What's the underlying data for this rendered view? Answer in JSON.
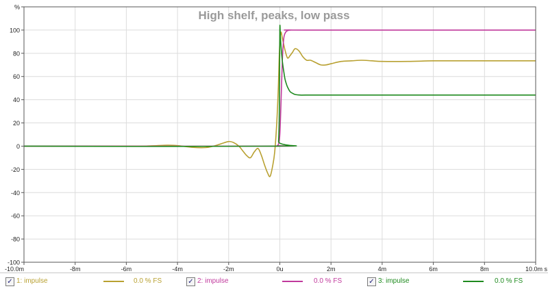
{
  "chart_data": {
    "type": "line",
    "title": "High shelf, peaks, low pass",
    "xlabel": "",
    "ylabel": "",
    "xlim": [
      -10.0,
      10.0
    ],
    "ylim": [
      -100,
      120
    ],
    "x_unit": "ms",
    "grid": true,
    "x_ticks": [
      {
        "v": -10,
        "label": "-10.0m"
      },
      {
        "v": -8,
        "label": "-8m"
      },
      {
        "v": -6,
        "label": "-6m"
      },
      {
        "v": -4,
        "label": "-4m"
      },
      {
        "v": -2,
        "label": "-2m"
      },
      {
        "v": 0,
        "label": "0u"
      },
      {
        "v": 2,
        "label": "2m"
      },
      {
        "v": 4,
        "label": "4m"
      },
      {
        "v": 6,
        "label": "6m"
      },
      {
        "v": 8,
        "label": "8m"
      },
      {
        "v": 10,
        "label": "10.0m s"
      }
    ],
    "y_ticks": [
      {
        "v": 120,
        "label": "%"
      },
      {
        "v": 100,
        "label": "100"
      },
      {
        "v": 80,
        "label": "80"
      },
      {
        "v": 60,
        "label": "60"
      },
      {
        "v": 40,
        "label": "40"
      },
      {
        "v": 20,
        "label": "20"
      },
      {
        "v": 0,
        "label": "0"
      },
      {
        "v": -20,
        "label": "-20"
      },
      {
        "v": -40,
        "label": "-40"
      },
      {
        "v": -60,
        "label": "-60"
      },
      {
        "v": -80,
        "label": "-80"
      },
      {
        "v": -100,
        "label": "-100"
      }
    ],
    "series": [
      {
        "name": "1: impulse",
        "value_label": "0.0 % FS",
        "color": "#b8a030",
        "x": [
          -10,
          -6,
          -5,
          -4.4,
          -4,
          -3.4,
          -2.9,
          -2.6,
          -2.3,
          -2.0,
          -1.8,
          -1.6,
          -1.45,
          -1.3,
          -1.15,
          -1.0,
          -0.85,
          -0.72,
          -0.6,
          -0.48,
          -0.38,
          -0.28,
          -0.2,
          -0.12,
          -0.06,
          -0.01,
          0.04,
          0.1,
          0.2,
          0.3,
          0.4,
          0.5,
          0.6,
          0.75,
          0.9,
          1.05,
          1.2,
          1.4,
          1.6,
          1.8,
          2.0,
          2.4,
          2.8,
          3.2,
          3.6,
          4.0,
          5.0,
          6.0,
          7.0,
          8.0,
          9.0,
          10.0
        ],
        "y": [
          0,
          0,
          0.3,
          0.8,
          0.5,
          -1,
          -1.2,
          0,
          2,
          4,
          3,
          0,
          -4,
          -8,
          -10,
          -5,
          -2,
          -8,
          -16,
          -23,
          -26,
          -17,
          -5,
          20,
          50,
          85,
          98,
          93,
          83,
          76,
          78,
          81,
          84,
          82,
          77,
          74,
          74,
          72,
          70,
          70,
          71,
          73,
          73.5,
          74,
          73.5,
          73,
          73,
          73.5,
          73.5,
          73.5,
          73.5,
          73.5
        ]
      },
      {
        "name": "2: impulse",
        "value_label": "0.0 % FS",
        "color": "#c0389c",
        "x": [
          -10,
          -0.2,
          -0.1,
          -0.05,
          0,
          0.05,
          0.1,
          0.15,
          0.2,
          0.3,
          0.5,
          1,
          10
        ],
        "y": [
          0,
          0,
          0.5,
          2,
          10,
          40,
          75,
          92,
          97,
          99.5,
          100,
          100,
          100
        ]
      },
      {
        "name": "3: impulse",
        "value_label": "0.0 % FS",
        "color": "#1e8a1e",
        "x": [
          -10,
          -0.1,
          -0.05,
          -0.02,
          0.0,
          0.02,
          0.05,
          0.1,
          0.15,
          0.2,
          0.25,
          0.3,
          0.4,
          0.5,
          0.6,
          0.8,
          1,
          2,
          10
        ],
        "y": [
          0,
          0,
          4,
          30,
          100,
          95,
          85,
          73,
          65,
          58,
          54,
          51,
          47,
          45.5,
          44.5,
          44,
          44,
          44,
          44
        ]
      }
    ]
  }
}
